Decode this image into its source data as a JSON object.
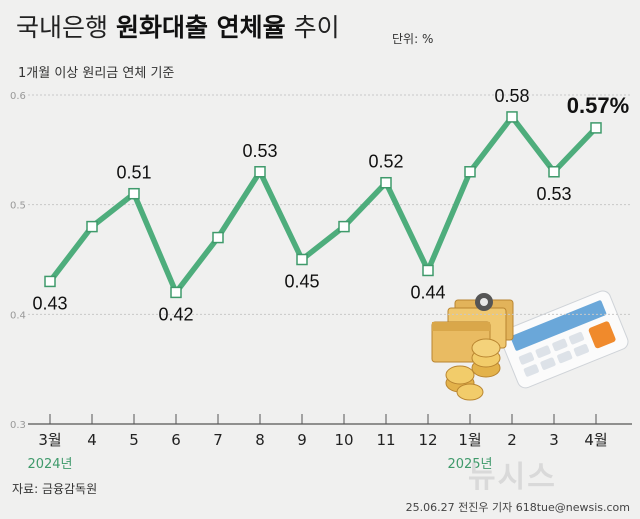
{
  "title": {
    "pre": "국내은행 ",
    "emphasis": "원화대출 연체율",
    "post": " 추이"
  },
  "unit": "단위: %",
  "subtitle": "1개월 이상 원리금 연체 기준",
  "source": "자료: 금융감독원",
  "credit": "25.06.27 전진우 기자 618tue@newsis.com",
  "watermark": "뉴시스",
  "chart_data": {
    "type": "line",
    "title": "국내은행 원화대출 연체율 추이",
    "categories": [
      "3월",
      "4",
      "5",
      "6",
      "7",
      "8",
      "9",
      "10",
      "11",
      "12",
      "1월",
      "2",
      "3",
      "4월"
    ],
    "year_labels": [
      {
        "label": "2024년",
        "index": 0
      },
      {
        "label": "2025년",
        "index": 10
      }
    ],
    "series": [
      {
        "name": "연체율",
        "values": [
          0.43,
          0.48,
          0.51,
          0.42,
          0.47,
          0.53,
          0.45,
          0.48,
          0.52,
          0.44,
          0.53,
          0.58,
          0.53,
          0.57
        ],
        "labels": [
          "0.43",
          null,
          "0.51",
          "0.42",
          null,
          "0.53",
          "0.45",
          null,
          "0.52",
          "0.44",
          null,
          "0.58",
          "0.53",
          "0.57%"
        ]
      }
    ],
    "yticks": [
      "0.6",
      "0.5",
      "0.4",
      "0.3"
    ],
    "ylim": [
      0.3,
      0.6
    ],
    "grid": true,
    "line_color": "#4ead7c"
  }
}
